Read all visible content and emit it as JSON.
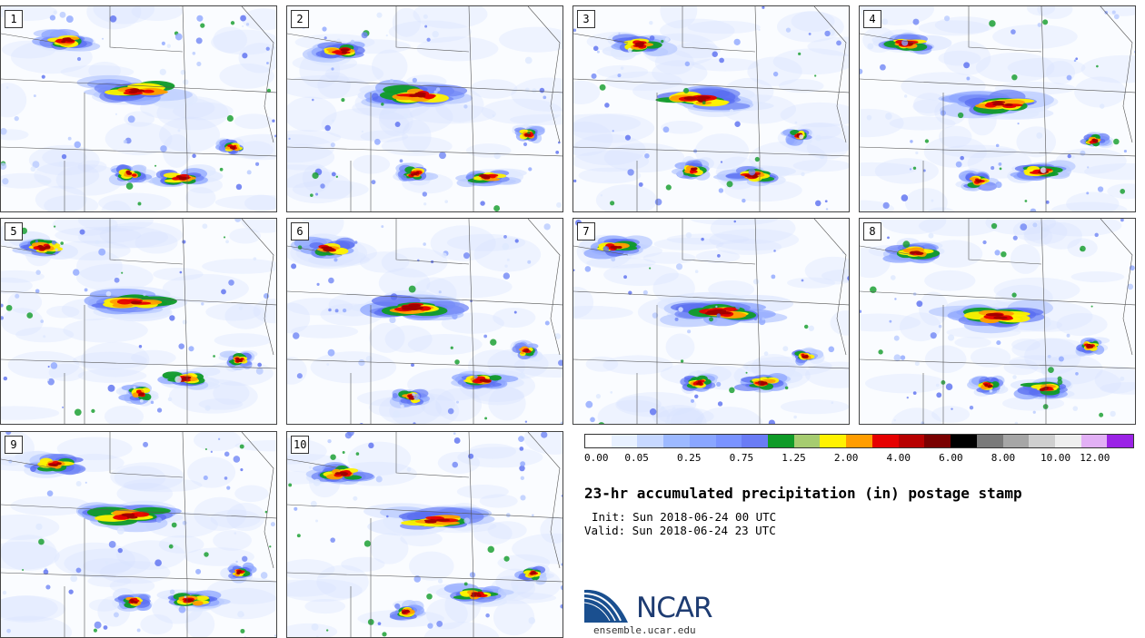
{
  "panels": [
    {
      "label": "1"
    },
    {
      "label": "2"
    },
    {
      "label": "3"
    },
    {
      "label": "4"
    },
    {
      "label": "5"
    },
    {
      "label": "6"
    },
    {
      "label": "7"
    },
    {
      "label": "8"
    },
    {
      "label": "9"
    },
    {
      "label": "10"
    }
  ],
  "colorbar": {
    "colors": [
      "#ffffff",
      "#e8f1ff",
      "#c7d8ff",
      "#9db9ff",
      "#8aa6ff",
      "#7a93ff",
      "#6a7cf5",
      "#109b28",
      "#a6cc70",
      "#fff200",
      "#ff9d00",
      "#e60000",
      "#b80000",
      "#7a0000",
      "#000000",
      "#7a7a7a",
      "#a6a6a6",
      "#cfcfcf",
      "#eeeeee",
      "#e2b0f5",
      "#9b23e6"
    ],
    "labels": [
      "0.00",
      "0.05",
      "0.25",
      "0.75",
      "1.25",
      "2.00",
      "4.00",
      "6.00",
      "8.00",
      "10.00",
      "12.00"
    ]
  },
  "title": "23-hr accumulated precipitation (in) postage stamp",
  "init": "Init: Sun 2018-06-24 00 UTC",
  "valid": "Valid: Sun 2018-06-24 23 UTC",
  "logo": {
    "text": "NCAR",
    "url": "ensemble.ucar.edu"
  }
}
